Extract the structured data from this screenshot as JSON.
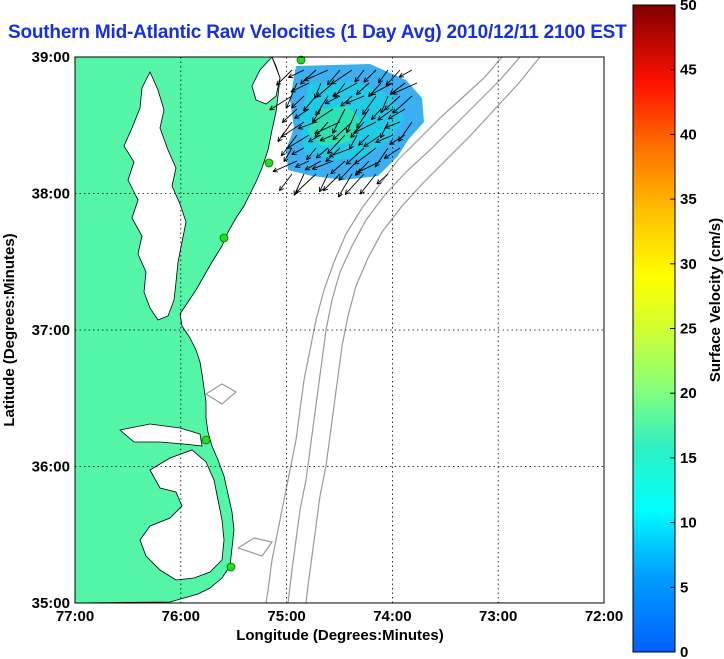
{
  "title": "Southern Mid-Atlantic Raw Velocities (1 Day Avg) 2010/12/11 2100 EST",
  "map": {
    "xlabel": "Longitude (Degrees:Minutes)",
    "ylabel": "Latitude (Degrees:Minutes)",
    "x_ticks": [
      "77:00",
      "76:00",
      "75:00",
      "74:00",
      "73:00",
      "72:00"
    ],
    "y_ticks": [
      "39:00",
      "38:00",
      "37:00",
      "36:00",
      "35:00"
    ],
    "lon_range": [
      -77,
      -72
    ],
    "lat_range": [
      35,
      39
    ],
    "colors": {
      "land": "#55f5a8",
      "water": "#ffffff",
      "bathymetry": "#9a9a9a",
      "coast": "#000000",
      "station": "#22dd22"
    }
  },
  "colorbar": {
    "label": "Surface Velocity (cm/s)",
    "ticks": [
      "0",
      "5",
      "10",
      "15",
      "20",
      "25",
      "30",
      "35",
      "40",
      "45",
      "50"
    ],
    "range": [
      0,
      50
    ],
    "colormap": "jet"
  }
}
